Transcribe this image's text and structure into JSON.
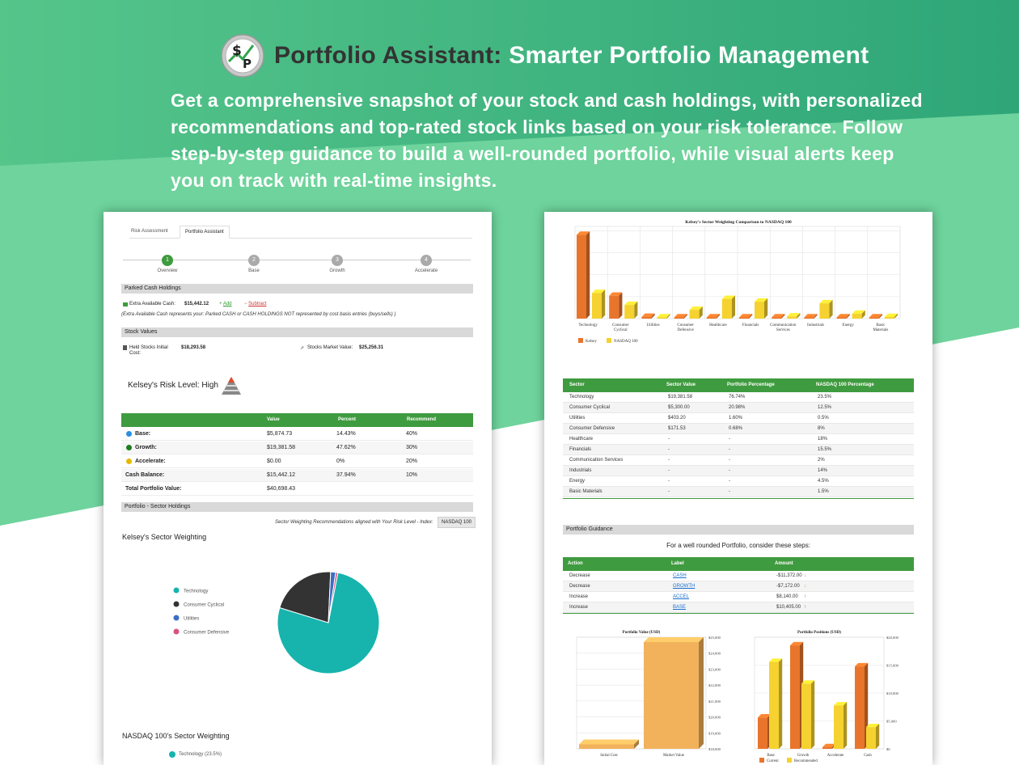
{
  "header": {
    "title_part1": "Portfolio Assistant:",
    "title_part2": "Smarter Portfolio Management",
    "subtitle": "Get a comprehensive snapshot of your stock and cash holdings, with personalized recommendations and top-rated stock links based on your risk tolerance. Follow step-by-step guidance to build a well-rounded portfolio, while visual alerts keep you on track with real-time insights.",
    "logo_text": "$P"
  },
  "colors": {
    "bg_top": "#3fb07a",
    "bg_light": "#6fd19a",
    "green": "#3f9b3f",
    "teal": "#16b4ad",
    "dark": "#333333",
    "orange": "#e8752b",
    "yellow": "#f5d230"
  },
  "left": {
    "tabs": [
      "Risk Assessment",
      "Portfolio Assistant"
    ],
    "steps": [
      {
        "num": "1",
        "label": "Overview"
      },
      {
        "num": "2",
        "label": "Base"
      },
      {
        "num": "3",
        "label": "Growth"
      },
      {
        "num": "4",
        "label": "Accelerate"
      }
    ],
    "parked": {
      "section": "Parked Cash Holdings",
      "label": "Extra Available Cash:",
      "value": "$15,442.12",
      "add": "Add",
      "subtract": "Subtract",
      "note": "(Extra Available Cash represents your: Parked CASH or CASH HOLDINGS NOT represented by cost basis entries (buys/sells) )"
    },
    "stock_values": {
      "section": "Stock Values",
      "held_label": "Held Stocks Initial Cost:",
      "held_value": "$18,293.58",
      "market_label": "Stocks Market Value:",
      "market_value": "$25,256.31"
    },
    "risk_title": "Kelsey's Risk Level: High",
    "risk_table": {
      "headers": [
        "",
        "Value",
        "Percent",
        "Recommend"
      ],
      "rows": [
        {
          "label": "Base:",
          "value": "$5,874.73",
          "percent": "14.43%",
          "recommend": "40%"
        },
        {
          "label": "Growth:",
          "value": "$19,381.58",
          "percent": "47.62%",
          "recommend": "30%"
        },
        {
          "label": "Accelerate:",
          "value": "$0.00",
          "percent": "0%",
          "recommend": "20%"
        },
        {
          "label": "Cash Balance:",
          "value": "$15,442.12",
          "percent": "37.94%",
          "recommend": "10%"
        },
        {
          "label": "Total Portfolio Value:",
          "value": "$40,698.43",
          "percent": "",
          "recommend": ""
        }
      ]
    },
    "sector_holdings_section": "Portfolio - Sector Holdings",
    "sector_rec_text": "Sector Weighting Recommendations aligned with Your Risk Level - Index:",
    "index_value": "NASDAQ 100",
    "kelsey_sector_title": "Kelsey's Sector Weighting",
    "nasdaq_sector_title": "NASDAQ 100's Sector Weighting",
    "nasdaq_legend_first": "Technology (23.5%)"
  },
  "right": {
    "bar_chart_title": "Kelsey's Sector Weighting Comparison to NASDAQ 100",
    "sector_table": {
      "headers": [
        "Sector",
        "Sector Value",
        "Portfolio Percentage",
        "NASDAQ 100 Percentage"
      ],
      "rows": [
        [
          "Technology",
          "$19,381.58",
          "76.74%",
          "23.5%"
        ],
        [
          "Consumer Cyclical",
          "$5,300.00",
          "20.98%",
          "12.5%"
        ],
        [
          "Utilities",
          "$403.20",
          "1.60%",
          "0.5%"
        ],
        [
          "Consumer Defensive",
          "$171.53",
          "0.68%",
          "8%"
        ],
        [
          "Healthcare",
          "-",
          "-",
          "18%"
        ],
        [
          "Financials",
          "-",
          "-",
          "15.5%"
        ],
        [
          "Communication Services",
          "-",
          "-",
          "2%"
        ],
        [
          "Industrials",
          "-",
          "-",
          "14%"
        ],
        [
          "Energy",
          "-",
          "-",
          "4.5%"
        ],
        [
          "Basic Materials",
          "-",
          "-",
          "1.5%"
        ]
      ]
    },
    "guidance_section": "Portfolio Guidance",
    "guidance_title": "For a well rounded Portfolio, consider these steps:",
    "guidance_table": {
      "headers": [
        "Action",
        "Label",
        "Amount"
      ],
      "rows": [
        {
          "action": "Decrease",
          "label": "CASH",
          "amount": "-$11,372.00",
          "arrow": "↓"
        },
        {
          "action": "Decrease",
          "label": "GROWTH",
          "amount": "-$7,172.00",
          "arrow": "↓"
        },
        {
          "action": "Increase",
          "label": "ACCEL",
          "amount": "$8,140.00",
          "arrow": "↑"
        },
        {
          "action": "Increase",
          "label": "BASE",
          "amount": "$10,405.00",
          "arrow": "↑"
        }
      ]
    }
  },
  "chart_data": [
    {
      "type": "pie",
      "title": "Kelsey's Sector Weighting",
      "categories": [
        "Technology",
        "Consumer Cyclical",
        "Utilities",
        "Consumer Defensive"
      ],
      "values": [
        76.74,
        20.98,
        1.6,
        0.68
      ],
      "colors": [
        "#16b4ad",
        "#333333",
        "#3b6fc4",
        "#d9527f"
      ]
    },
    {
      "type": "bar",
      "title": "Kelsey's Sector Weighting Comparison to NASDAQ 100",
      "categories": [
        "Technology",
        "Consumer Cyclical",
        "Utilities",
        "Consumer Defensive",
        "Healthcare",
        "Financials",
        "Communication Services",
        "Industrials",
        "Energy",
        "Basic Materials"
      ],
      "series": [
        {
          "name": "Kelsey",
          "values": [
            76.74,
            20.98,
            1.6,
            0.68,
            0,
            0,
            0,
            0,
            0,
            0
          ]
        },
        {
          "name": "NASDAQ 100",
          "values": [
            23.5,
            12.5,
            0.5,
            8,
            18,
            15.5,
            2,
            14,
            4.5,
            1.5
          ]
        }
      ],
      "ylim": [
        0,
        80
      ]
    },
    {
      "type": "bar",
      "title": "Portfolio Value (USD)",
      "categories": [
        "Initial Cost",
        "Market Value"
      ],
      "values": [
        18293.58,
        25256.31
      ],
      "ylim": [
        18000,
        25000
      ],
      "yticks": [
        "$18,000",
        "$19,000",
        "$20,000",
        "$21,000",
        "$22,000",
        "$23,000",
        "$24,000",
        "$25,000"
      ]
    },
    {
      "type": "bar",
      "title": "Portfolio Positions (USD)",
      "categories": [
        "Base",
        "Growth",
        "Accelerate",
        "Cash"
      ],
      "series": [
        {
          "name": "Current",
          "values": [
            5874.73,
            19381.58,
            0,
            15442.12
          ]
        },
        {
          "name": "Recommended",
          "values": [
            16279,
            12209,
            8140,
            4070
          ]
        }
      ],
      "ylim": [
        0,
        20000
      ],
      "yticks": [
        "$0",
        "$5,000",
        "$10,000",
        "$15,000",
        "$20,000"
      ]
    }
  ]
}
